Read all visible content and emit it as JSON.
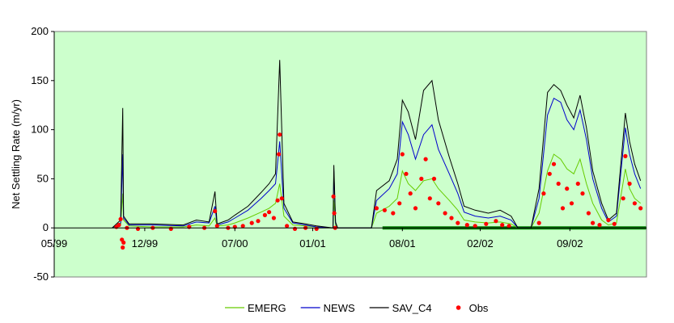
{
  "chart_data": {
    "type": "line",
    "title": "",
    "xlabel": "",
    "ylabel": "Net Settling Rate (m/yr)",
    "ylim": [
      -50,
      200
    ],
    "yticks": [
      -50,
      0,
      50,
      100,
      150,
      200
    ],
    "ytick_labels": [
      "-50",
      "0",
      "50",
      "100",
      "150",
      "200"
    ],
    "xlim": [
      "1999-05-01",
      "2003-03-01"
    ],
    "xticks": [
      "1999-05-01",
      "1999-12-01",
      "2000-07-01",
      "2001-01-01",
      "2001-08-01",
      "2002-02-01",
      "2002-09-01"
    ],
    "xtick_labels": [
      "05/99",
      "12/99",
      "07/00",
      "01/01",
      "08/01",
      "02/02",
      "09/02"
    ],
    "plot_background": "#ccffcc",
    "grid": false,
    "legend_position": "bottom",
    "series": [
      {
        "name": "EMERG",
        "kind": "line",
        "color": "#66cc00",
        "points": [
          [
            "1999-09-15",
            0
          ],
          [
            "1999-10-05",
            3
          ],
          [
            "1999-10-10",
            35
          ],
          [
            "1999-10-12",
            8
          ],
          [
            "1999-10-25",
            2
          ],
          [
            "1999-12-15",
            1
          ],
          [
            "2000-03-01",
            1
          ],
          [
            "2000-04-01",
            3
          ],
          [
            "2000-05-01",
            2
          ],
          [
            "2000-05-15",
            10
          ],
          [
            "2000-05-20",
            2
          ],
          [
            "2000-06-15",
            3
          ],
          [
            "2000-07-01",
            5
          ],
          [
            "2000-08-01",
            10
          ],
          [
            "2000-09-01",
            16
          ],
          [
            "2000-09-20",
            20
          ],
          [
            "2000-10-05",
            25
          ],
          [
            "2000-10-15",
            45
          ],
          [
            "2000-10-25",
            12
          ],
          [
            "2000-11-15",
            3
          ],
          [
            "2000-12-15",
            2
          ],
          [
            "2001-01-10",
            1
          ],
          [
            "2001-02-18",
            0
          ],
          [
            "2001-02-20",
            28
          ],
          [
            "2001-02-24",
            3
          ],
          [
            "2001-03-01",
            0
          ],
          [
            "2001-05-20",
            0
          ],
          [
            "2001-06-01",
            15
          ],
          [
            "2001-07-01",
            22
          ],
          [
            "2001-07-20",
            30
          ],
          [
            "2001-08-01",
            58
          ],
          [
            "2001-08-15",
            45
          ],
          [
            "2001-09-01",
            38
          ],
          [
            "2001-09-20",
            48
          ],
          [
            "2001-10-10",
            50
          ],
          [
            "2001-10-25",
            40
          ],
          [
            "2001-11-20",
            28
          ],
          [
            "2001-12-10",
            18
          ],
          [
            "2001-12-25",
            8
          ],
          [
            "2002-01-20",
            6
          ],
          [
            "2002-02-20",
            5
          ],
          [
            "2002-03-20",
            6
          ],
          [
            "2002-04-15",
            4
          ],
          [
            "2002-05-01",
            0
          ],
          [
            "2002-06-01",
            0
          ],
          [
            "2002-06-20",
            15
          ],
          [
            "2002-07-10",
            58
          ],
          [
            "2002-07-25",
            75
          ],
          [
            "2002-08-10",
            70
          ],
          [
            "2002-08-25",
            60
          ],
          [
            "2002-09-10",
            55
          ],
          [
            "2002-09-25",
            70
          ],
          [
            "2002-10-10",
            45
          ],
          [
            "2002-10-25",
            25
          ],
          [
            "2002-11-15",
            8
          ],
          [
            "2002-12-01",
            3
          ],
          [
            "2002-12-20",
            5
          ],
          [
            "2003-01-10",
            60
          ],
          [
            "2003-01-20",
            40
          ],
          [
            "2003-02-01",
            30
          ],
          [
            "2003-02-15",
            25
          ]
        ]
      },
      {
        "name": "NEWS",
        "kind": "line",
        "color": "#0000cc",
        "points": [
          [
            "1999-09-15",
            0
          ],
          [
            "1999-10-05",
            5
          ],
          [
            "1999-10-10",
            75
          ],
          [
            "1999-10-12",
            10
          ],
          [
            "1999-10-25",
            3
          ],
          [
            "1999-12-15",
            3
          ],
          [
            "2000-03-01",
            2
          ],
          [
            "2000-04-01",
            6
          ],
          [
            "2000-05-01",
            5
          ],
          [
            "2000-05-15",
            22
          ],
          [
            "2000-05-20",
            3
          ],
          [
            "2000-06-15",
            6
          ],
          [
            "2000-07-01",
            10
          ],
          [
            "2000-08-01",
            18
          ],
          [
            "2000-09-01",
            30
          ],
          [
            "2000-09-20",
            38
          ],
          [
            "2000-10-05",
            45
          ],
          [
            "2000-10-15",
            88
          ],
          [
            "2000-10-25",
            20
          ],
          [
            "2000-11-15",
            5
          ],
          [
            "2000-12-15",
            3
          ],
          [
            "2001-01-10",
            1
          ],
          [
            "2001-02-18",
            0
          ],
          [
            "2001-02-20",
            58
          ],
          [
            "2001-02-24",
            5
          ],
          [
            "2001-03-01",
            0
          ],
          [
            "2001-05-20",
            0
          ],
          [
            "2001-06-01",
            28
          ],
          [
            "2001-07-01",
            40
          ],
          [
            "2001-07-20",
            55
          ],
          [
            "2001-08-01",
            108
          ],
          [
            "2001-08-15",
            95
          ],
          [
            "2001-09-01",
            70
          ],
          [
            "2001-09-20",
            95
          ],
          [
            "2001-10-10",
            105
          ],
          [
            "2001-10-25",
            80
          ],
          [
            "2001-11-20",
            55
          ],
          [
            "2001-12-10",
            35
          ],
          [
            "2001-12-25",
            16
          ],
          [
            "2002-01-20",
            12
          ],
          [
            "2002-02-20",
            10
          ],
          [
            "2002-03-20",
            12
          ],
          [
            "2002-04-15",
            8
          ],
          [
            "2002-05-01",
            0
          ],
          [
            "2002-06-01",
            0
          ],
          [
            "2002-06-20",
            30
          ],
          [
            "2002-07-10",
            115
          ],
          [
            "2002-07-25",
            132
          ],
          [
            "2002-08-10",
            128
          ],
          [
            "2002-08-25",
            110
          ],
          [
            "2002-09-10",
            100
          ],
          [
            "2002-09-25",
            120
          ],
          [
            "2002-10-10",
            90
          ],
          [
            "2002-10-25",
            50
          ],
          [
            "2002-11-15",
            20
          ],
          [
            "2002-12-01",
            6
          ],
          [
            "2002-12-20",
            12
          ],
          [
            "2003-01-10",
            102
          ],
          [
            "2003-01-20",
            75
          ],
          [
            "2003-02-01",
            55
          ],
          [
            "2003-02-15",
            40
          ]
        ]
      },
      {
        "name": "SAV_C4",
        "kind": "line",
        "color": "#000000",
        "points": [
          [
            "1999-09-15",
            0
          ],
          [
            "1999-10-05",
            8
          ],
          [
            "1999-10-10",
            122
          ],
          [
            "1999-10-12",
            12
          ],
          [
            "1999-10-25",
            4
          ],
          [
            "1999-12-15",
            4
          ],
          [
            "2000-03-01",
            3
          ],
          [
            "2000-04-01",
            8
          ],
          [
            "2000-05-01",
            6
          ],
          [
            "2000-05-15",
            37
          ],
          [
            "2000-05-20",
            4
          ],
          [
            "2000-06-15",
            8
          ],
          [
            "2000-07-01",
            13
          ],
          [
            "2000-08-01",
            22
          ],
          [
            "2000-09-01",
            36
          ],
          [
            "2000-09-20",
            45
          ],
          [
            "2000-10-05",
            55
          ],
          [
            "2000-10-15",
            171
          ],
          [
            "2000-10-25",
            25
          ],
          [
            "2000-11-15",
            6
          ],
          [
            "2000-12-15",
            4
          ],
          [
            "2001-01-10",
            2
          ],
          [
            "2001-02-18",
            0
          ],
          [
            "2001-02-20",
            64
          ],
          [
            "2001-02-24",
            6
          ],
          [
            "2001-03-01",
            0
          ],
          [
            "2001-05-20",
            0
          ],
          [
            "2001-06-01",
            38
          ],
          [
            "2001-07-01",
            48
          ],
          [
            "2001-07-20",
            70
          ],
          [
            "2001-08-01",
            130
          ],
          [
            "2001-08-15",
            118
          ],
          [
            "2001-09-01",
            90
          ],
          [
            "2001-09-20",
            140
          ],
          [
            "2001-10-10",
            150
          ],
          [
            "2001-10-25",
            110
          ],
          [
            "2001-11-20",
            72
          ],
          [
            "2001-12-10",
            45
          ],
          [
            "2001-12-25",
            22
          ],
          [
            "2002-01-20",
            18
          ],
          [
            "2002-02-20",
            15
          ],
          [
            "2002-03-20",
            18
          ],
          [
            "2002-04-15",
            12
          ],
          [
            "2002-05-01",
            0
          ],
          [
            "2002-06-01",
            0
          ],
          [
            "2002-06-20",
            40
          ],
          [
            "2002-07-10",
            138
          ],
          [
            "2002-07-25",
            146
          ],
          [
            "2002-08-10",
            140
          ],
          [
            "2002-08-25",
            125
          ],
          [
            "2002-09-10",
            112
          ],
          [
            "2002-09-25",
            135
          ],
          [
            "2002-10-10",
            102
          ],
          [
            "2002-10-25",
            58
          ],
          [
            "2002-11-15",
            25
          ],
          [
            "2002-12-01",
            8
          ],
          [
            "2002-12-20",
            15
          ],
          [
            "2003-01-10",
            117
          ],
          [
            "2003-01-20",
            88
          ],
          [
            "2003-02-01",
            65
          ],
          [
            "2003-02-15",
            48
          ]
        ]
      },
      {
        "name": "Obs",
        "kind": "scatter",
        "color": "#ff0000",
        "points": [
          [
            "1999-09-25",
            1
          ],
          [
            "1999-10-01",
            3
          ],
          [
            "1999-10-05",
            9
          ],
          [
            "1999-10-08",
            -12
          ],
          [
            "1999-10-10",
            -20
          ],
          [
            "1999-10-12",
            -15
          ],
          [
            "1999-10-20",
            0
          ],
          [
            "1999-11-15",
            -1
          ],
          [
            "1999-12-20",
            0
          ],
          [
            "2000-02-01",
            -1
          ],
          [
            "2000-03-15",
            1
          ],
          [
            "2000-04-20",
            0
          ],
          [
            "2000-05-15",
            17
          ],
          [
            "2000-05-20",
            2
          ],
          [
            "2000-06-15",
            0
          ],
          [
            "2000-07-01",
            1
          ],
          [
            "2000-07-20",
            2
          ],
          [
            "2000-08-10",
            5
          ],
          [
            "2000-08-25",
            7
          ],
          [
            "2000-09-10",
            13
          ],
          [
            "2000-09-20",
            16
          ],
          [
            "2000-10-01",
            10
          ],
          [
            "2000-10-10",
            28
          ],
          [
            "2000-10-13",
            75
          ],
          [
            "2000-10-15",
            95
          ],
          [
            "2000-10-20",
            30
          ],
          [
            "2000-11-01",
            2
          ],
          [
            "2000-11-20",
            -1
          ],
          [
            "2000-12-15",
            0
          ],
          [
            "2001-01-10",
            -1
          ],
          [
            "2001-02-19",
            32
          ],
          [
            "2001-02-21",
            15
          ],
          [
            "2001-02-23",
            0
          ],
          [
            "2001-06-01",
            20
          ],
          [
            "2001-06-20",
            18
          ],
          [
            "2001-07-10",
            15
          ],
          [
            "2001-07-25",
            25
          ],
          [
            "2001-08-01",
            75
          ],
          [
            "2001-08-10",
            55
          ],
          [
            "2001-08-20",
            35
          ],
          [
            "2001-09-01",
            20
          ],
          [
            "2001-09-15",
            50
          ],
          [
            "2001-09-25",
            70
          ],
          [
            "2001-10-05",
            30
          ],
          [
            "2001-10-15",
            50
          ],
          [
            "2001-10-25",
            25
          ],
          [
            "2001-11-10",
            15
          ],
          [
            "2001-11-25",
            10
          ],
          [
            "2001-12-10",
            5
          ],
          [
            "2002-01-01",
            3
          ],
          [
            "2002-01-20",
            2
          ],
          [
            "2002-02-15",
            4
          ],
          [
            "2002-03-10",
            7
          ],
          [
            "2002-03-25",
            3
          ],
          [
            "2002-04-10",
            2
          ],
          [
            "2002-06-20",
            5
          ],
          [
            "2002-07-01",
            35
          ],
          [
            "2002-07-15",
            55
          ],
          [
            "2002-07-25",
            65
          ],
          [
            "2002-08-05",
            45
          ],
          [
            "2002-08-15",
            20
          ],
          [
            "2002-08-25",
            40
          ],
          [
            "2002-09-05",
            25
          ],
          [
            "2002-09-20",
            45
          ],
          [
            "2002-10-01",
            35
          ],
          [
            "2002-10-15",
            15
          ],
          [
            "2002-10-25",
            5
          ],
          [
            "2002-11-10",
            3
          ],
          [
            "2002-12-01",
            8
          ],
          [
            "2002-12-15",
            4
          ],
          [
            "2003-01-05",
            30
          ],
          [
            "2003-01-10",
            73
          ],
          [
            "2003-01-20",
            45
          ],
          [
            "2003-02-01",
            25
          ],
          [
            "2003-02-15",
            20
          ]
        ]
      },
      {
        "name": "",
        "kind": "zero-band",
        "color": "#008000",
        "x_range": [
          "2001-06-15",
          "2003-02-28"
        ]
      }
    ]
  }
}
